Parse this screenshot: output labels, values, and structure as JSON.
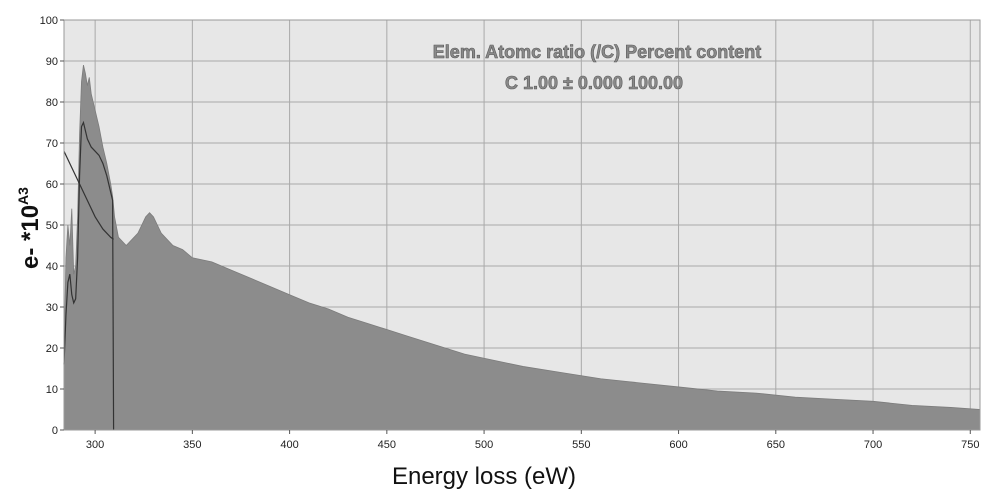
{
  "chart_data": {
    "type": "area",
    "title": "",
    "xlabel": "Energy loss (eW)",
    "ylabel": "e- *10",
    "ylabel_superscript": "A3",
    "xlim": [
      284,
      755
    ],
    "ylim": [
      0,
      100
    ],
    "x_ticks": [
      300,
      350,
      400,
      450,
      500,
      550,
      600,
      650,
      700,
      750
    ],
    "y_ticks": [
      0,
      10,
      20,
      30,
      40,
      50,
      60,
      70,
      80,
      90,
      100
    ],
    "grid": true,
    "annotation_lines": [
      "Elem. Atomc ratio (/C) Percent content",
      "C 1.00 ± 0.000 100.00"
    ],
    "series": [
      {
        "kind": "area",
        "color": "#8c8c8c",
        "x": [
          284,
          285,
          286,
          287,
          288,
          289,
          290,
          291,
          292,
          293,
          294,
          295,
          296,
          297,
          298,
          300,
          302,
          304,
          306,
          308,
          309,
          310,
          312,
          314,
          316,
          318,
          320,
          322,
          324,
          326,
          328,
          330,
          332,
          334,
          336,
          338,
          340,
          345,
          350,
          360,
          370,
          380,
          390,
          400,
          410,
          420,
          430,
          440,
          450,
          460,
          470,
          480,
          490,
          500,
          520,
          540,
          560,
          580,
          600,
          620,
          640,
          660,
          680,
          700,
          720,
          740,
          755
        ],
        "y": [
          18,
          42,
          50,
          45,
          54,
          38,
          40,
          52,
          72,
          85,
          89,
          87,
          84,
          86,
          82,
          78,
          74,
          69,
          65,
          60,
          57,
          52,
          47,
          46,
          45,
          46,
          47,
          48,
          50,
          52,
          53,
          52,
          50,
          48,
          47,
          46,
          45,
          44,
          42,
          41,
          39,
          37,
          35,
          33,
          31,
          29.5,
          27.5,
          26,
          24.5,
          23,
          21.5,
          20,
          18.5,
          17.5,
          15.5,
          14,
          12.5,
          11.5,
          10.5,
          9.5,
          9,
          8,
          7.5,
          7,
          6,
          5.5,
          5
        ]
      },
      {
        "kind": "line",
        "color": "#333333",
        "x": [
          284,
          288,
          292,
          296,
          300,
          304,
          308,
          309.5
        ],
        "y": [
          68,
          64,
          60,
          56,
          52,
          49,
          47,
          46.5
        ]
      },
      {
        "kind": "line",
        "color": "#333333",
        "x": [
          284,
          285,
          286,
          287,
          288,
          289,
          290,
          291,
          292,
          293,
          294,
          296,
          298,
          300,
          302,
          304,
          306,
          308,
          309,
          309.5
        ],
        "y": [
          16,
          28,
          36,
          38,
          33,
          31,
          32,
          42,
          62,
          74,
          75,
          71,
          69,
          68,
          67,
          65,
          62,
          58,
          56,
          0
        ]
      }
    ]
  }
}
